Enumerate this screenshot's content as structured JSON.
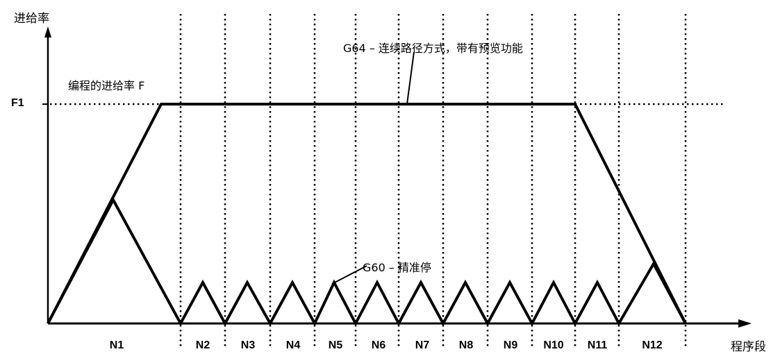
{
  "y_axis_label": "进给率",
  "x_axis_label": "程序段",
  "level_label": "F1",
  "annotations": {
    "programmed_feed": "编程的进给率 F",
    "g64": "G64 – 连续路径方式，带有预览功能",
    "g60": "G60 – 精准停"
  },
  "blocks": [
    "N1",
    "N2",
    "N3",
    "N4",
    "N5",
    "N6",
    "N7",
    "N8",
    "N9",
    "N10",
    "N11",
    "N12"
  ]
}
